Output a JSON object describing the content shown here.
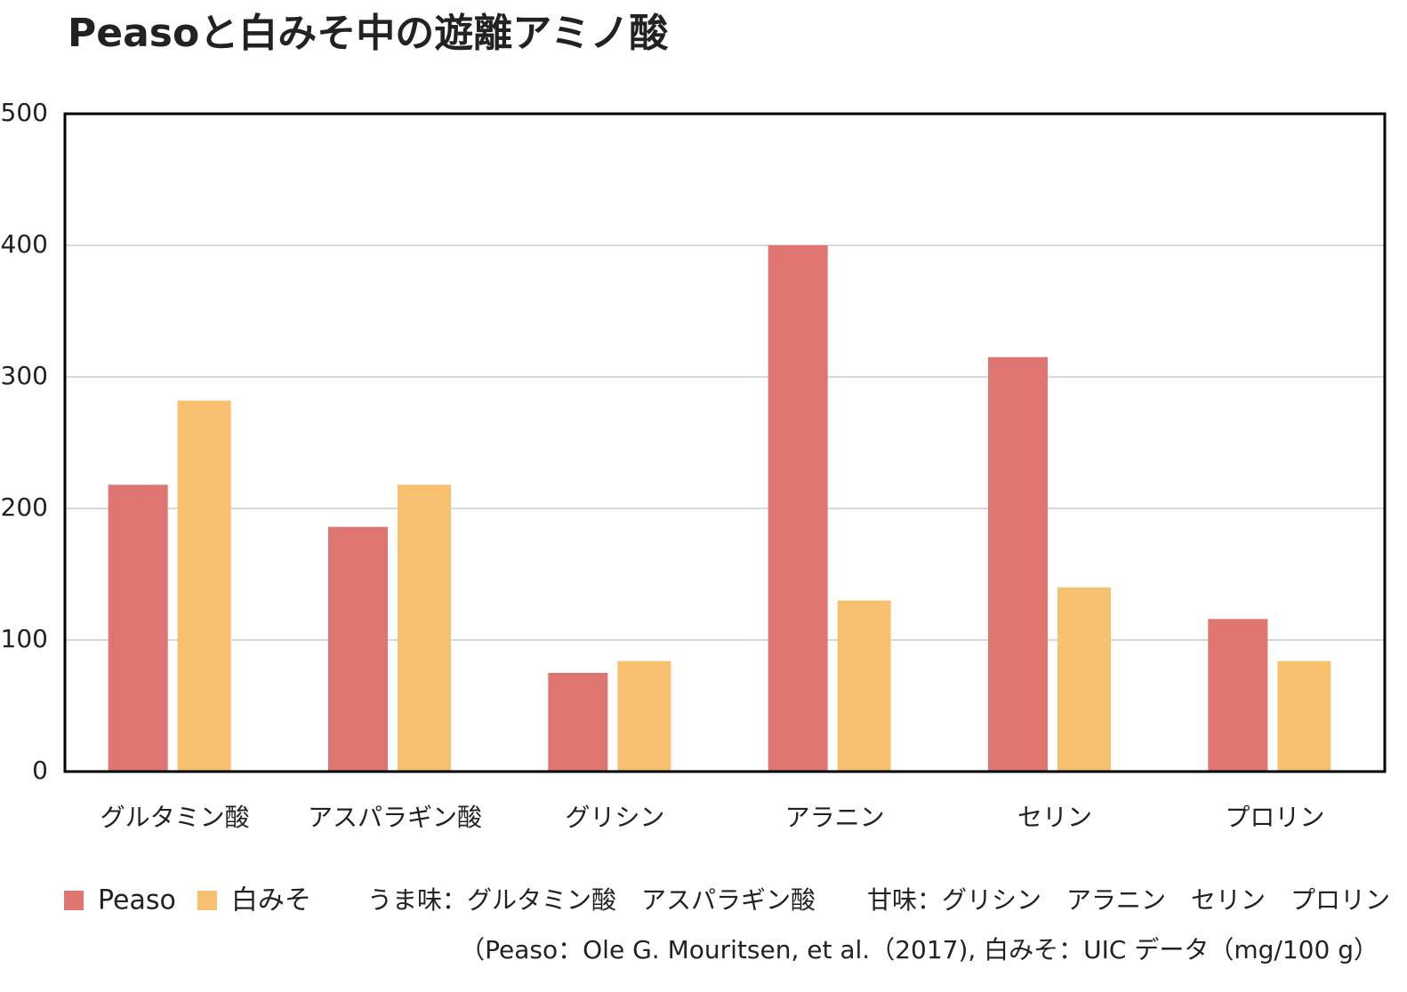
{
  "chart_data": {
    "type": "bar",
    "title": "Peasoと白みそ中の遊離アミノ酸",
    "categories": [
      "グルタミン酸",
      "アスパラギン酸",
      "グリシン",
      "アラニン",
      "セリン",
      "プロリン"
    ],
    "series": [
      {
        "name": "Peaso",
        "color": "#de7570",
        "values": [
          218,
          186,
          75,
          400,
          315,
          116
        ]
      },
      {
        "name": "白みそ",
        "color": "#f7c06f",
        "values": [
          282,
          218,
          84,
          130,
          140,
          84
        ]
      }
    ],
    "ylim": [
      0,
      500
    ],
    "yticks": [
      0,
      100,
      200,
      300,
      400,
      500
    ],
    "grid": true,
    "notes": [
      "うま味：グルタミン酸　アスパラギン酸",
      "甘味：グリシン　アラニン　セリン　プロリン"
    ],
    "source": "（Peaso：Ole G. Mouritsen, et al.（2017), 白みそ：UIC データ（mg/100 g）"
  }
}
